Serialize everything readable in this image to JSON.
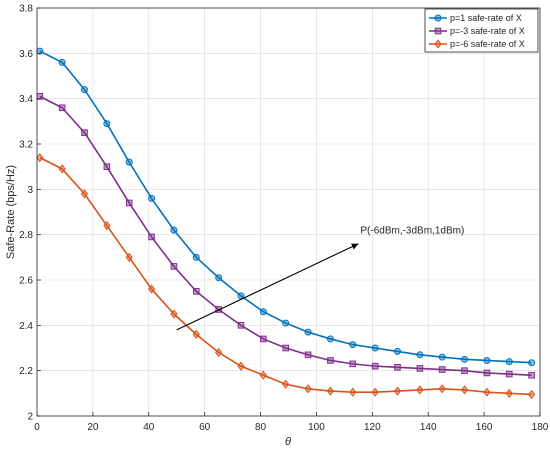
{
  "chart_data": {
    "type": "line",
    "title": "",
    "xlabel": "θ",
    "ylabel": "Safe-Rate (bps/Hz)",
    "xlim": [
      0,
      180
    ],
    "ylim": [
      2,
      3.8
    ],
    "xticks": [
      0,
      20,
      40,
      60,
      80,
      100,
      120,
      140,
      160,
      180
    ],
    "yticks": [
      2,
      2.2,
      2.4,
      2.6,
      2.8,
      3,
      3.2,
      3.4,
      3.6,
      3.8
    ],
    "grid": true,
    "legend_position": "top-right",
    "x": [
      1,
      9,
      17,
      25,
      33,
      41,
      49,
      57,
      65,
      73,
      81,
      89,
      97,
      105,
      113,
      121,
      129,
      137,
      145,
      153,
      161,
      169,
      177
    ],
    "series": [
      {
        "name": "p=1 safe-rate of X",
        "color": "#0072BD",
        "marker": "circle",
        "values": [
          3.61,
          3.56,
          3.44,
          3.29,
          3.12,
          2.96,
          2.82,
          2.7,
          2.61,
          2.53,
          2.46,
          2.41,
          2.37,
          2.34,
          2.315,
          2.3,
          2.285,
          2.27,
          2.26,
          2.25,
          2.245,
          2.24,
          2.235
        ]
      },
      {
        "name": "p=-3 safe-rate of X",
        "color": "#7E2F8E",
        "marker": "square",
        "values": [
          3.41,
          3.36,
          3.25,
          3.1,
          2.94,
          2.79,
          2.66,
          2.55,
          2.47,
          2.4,
          2.34,
          2.3,
          2.27,
          2.245,
          2.23,
          2.22,
          2.215,
          2.21,
          2.205,
          2.2,
          2.19,
          2.185,
          2.18
        ]
      },
      {
        "name": "p=-6 safe-rate of X",
        "color": "#D95319",
        "marker": "diamond",
        "values": [
          3.14,
          3.09,
          2.98,
          2.84,
          2.7,
          2.56,
          2.45,
          2.36,
          2.28,
          2.22,
          2.18,
          2.14,
          2.12,
          2.11,
          2.105,
          2.105,
          2.11,
          2.115,
          2.12,
          2.115,
          2.105,
          2.1,
          2.095
        ]
      }
    ],
    "annotation": {
      "text": "P(-6dBm,-3dBm,1dBm)",
      "arrow_from": [
        50,
        2.38
      ],
      "arrow_to": [
        115,
        2.76
      ]
    }
  }
}
